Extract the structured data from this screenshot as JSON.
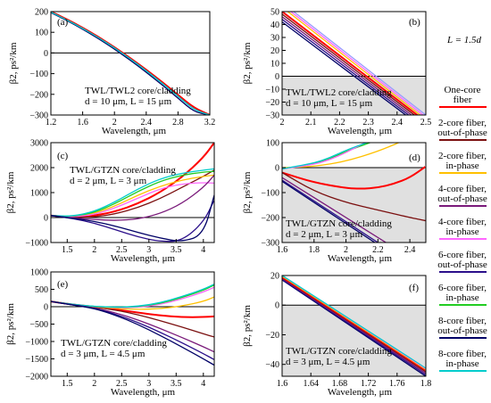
{
  "legend": {
    "note": "L = 1.5d",
    "items": [
      {
        "text": [
          "One-core",
          "fiber"
        ],
        "color": "#ff0000"
      },
      {
        "text": [
          "2-core fiber,",
          "out-of-phase"
        ],
        "color": "#7b1010"
      },
      {
        "text": [
          "2-core fiber,",
          "in-phase"
        ],
        "color": "#ffc000"
      },
      {
        "text": [
          "4-core fiber,",
          "out-of-phase"
        ],
        "color": "#7a1a7a"
      },
      {
        "text": [
          "4-core fiber,",
          "in-phase"
        ],
        "color": "#ff66ff"
      },
      {
        "text": [
          "6-core fiber,",
          "out-of-phase"
        ],
        "color": "#2b0f8a"
      },
      {
        "text": [
          "6-core fiber,",
          "in-phase"
        ],
        "color": "#22cc22"
      },
      {
        "text": [
          "8-core fiber,",
          "out-of-phase"
        ],
        "color": "#000066"
      },
      {
        "text": [
          "8-core fiber,",
          "in-phase"
        ],
        "color": "#00cccc"
      }
    ]
  },
  "chart_data": [
    {
      "panel": "(a)",
      "type": "line",
      "xlabel": "Wavelength, μm",
      "ylabel": "β2, ps²/km",
      "xlim": [
        1.2,
        3.2
      ],
      "ylim": [
        -300,
        200
      ],
      "xticks": [
        1.2,
        1.6,
        2.0,
        2.4,
        2.8,
        3.2
      ],
      "yticks": [
        -300,
        -200,
        -100,
        0,
        100,
        200
      ],
      "annotation": [
        "TWL/TWL2 core/cladding",
        "d = 10 μm, L = 15 μm"
      ],
      "series": [
        {
          "color": "#ff0000",
          "x": [
            1.2,
            1.4,
            1.6,
            1.8,
            2.0,
            2.2,
            2.4,
            2.6,
            2.8,
            3.0,
            3.2
          ],
          "y": [
            200,
            163,
            122,
            77,
            28,
            -25,
            -81,
            -140,
            -202,
            -265,
            -300
          ]
        },
        {
          "color": "#000066",
          "x": [
            1.2,
            1.4,
            1.6,
            1.8,
            2.0,
            2.2,
            2.4,
            2.6,
            2.8,
            3.0,
            3.2
          ],
          "y": [
            195,
            157,
            115,
            69,
            19,
            -35,
            -93,
            -154,
            -218,
            -285,
            -300
          ]
        },
        {
          "color": "#00cccc",
          "x": [
            1.2,
            1.4,
            1.6,
            1.8,
            2.0,
            2.2,
            2.4,
            2.6,
            2.8,
            3.0,
            3.2
          ],
          "y": [
            198,
            160,
            119,
            74,
            25,
            -29,
            -86,
            -146,
            -209,
            -275,
            -300
          ]
        }
      ]
    },
    {
      "panel": "(b)",
      "type": "line",
      "shaded": true,
      "xlabel": "Wavelength, μm",
      "ylabel": "β2, ps²/km",
      "xlim": [
        2.0,
        2.5
      ],
      "ylim": [
        -30,
        50
      ],
      "xticks": [
        2.0,
        2.1,
        2.2,
        2.3,
        2.4,
        2.5
      ],
      "yticks": [
        -30,
        -20,
        -10,
        0,
        10,
        20,
        30,
        40,
        50
      ],
      "annotation": [
        "TWL/TWL2 core/cladding",
        "d = 10 μm, L = 15 μm"
      ],
      "series": [
        {
          "color": "#000066",
          "x": [
            2.0,
            2.43
          ],
          "y": [
            42,
            -30
          ]
        },
        {
          "color": "#2b0f8a",
          "x": [
            2.0,
            2.44
          ],
          "y": [
            44,
            -30
          ]
        },
        {
          "color": "#7a1a7a",
          "x": [
            2.0,
            2.45
          ],
          "y": [
            46,
            -30
          ]
        },
        {
          "color": "#7b1010",
          "x": [
            2.0,
            2.46
          ],
          "y": [
            48,
            -30
          ]
        },
        {
          "color": "#ff0000",
          "x": [
            2.0,
            2.47
          ],
          "y": [
            50,
            -30
          ]
        },
        {
          "color": "#ffc000",
          "x": [
            2.02,
            2.48
          ],
          "y": [
            50,
            -30
          ]
        },
        {
          "color": "#ff66ff",
          "x": [
            2.03,
            2.49
          ],
          "y": [
            50,
            -30
          ]
        },
        {
          "color": "#9999ff",
          "x": [
            2.04,
            2.5
          ],
          "y": [
            50,
            -30
          ]
        }
      ]
    },
    {
      "panel": "(c)",
      "type": "line",
      "xlabel": "Wavelength, μm",
      "ylabel": "β2, ps²/km",
      "xlim": [
        1.2,
        4.2
      ],
      "ylim": [
        -1000,
        3000
      ],
      "xticks": [
        1.5,
        2.0,
        2.5,
        3.0,
        3.5,
        4.0
      ],
      "yticks": [
        -1000,
        0,
        1000,
        2000,
        3000
      ],
      "annotation": [
        "TWL/GTZN core/cladding",
        "d = 2 μm, L = 3 μm"
      ],
      "series": [
        {
          "color": "#ff0000",
          "x": [
            1.2,
            1.6,
            2.0,
            2.4,
            2.8,
            3.2,
            3.6,
            4.0,
            4.2
          ],
          "y": [
            80,
            10,
            70,
            250,
            560,
            1000,
            1600,
            2400,
            3000
          ]
        },
        {
          "color": "#7b1010",
          "x": [
            1.2,
            1.6,
            2.0,
            2.4,
            2.8,
            3.2,
            3.6,
            4.0,
            4.2
          ],
          "y": [
            80,
            0,
            20,
            150,
            400,
            750,
            1200,
            1650,
            1900
          ]
        },
        {
          "color": "#ffc000",
          "x": [
            1.2,
            1.6,
            2.0,
            2.4,
            2.8,
            3.2,
            3.6,
            4.0,
            4.2
          ],
          "y": [
            80,
            30,
            160,
            480,
            900,
            1250,
            1500,
            1650,
            1700
          ]
        },
        {
          "color": "#ff66ff",
          "x": [
            1.2,
            1.6,
            2.0,
            2.4,
            2.8,
            3.2,
            3.6,
            4.0,
            4.2
          ],
          "y": [
            80,
            20,
            120,
            400,
            780,
            1150,
            1350,
            1400,
            1380
          ]
        },
        {
          "color": "#22cc22",
          "x": [
            1.2,
            1.6,
            2.0,
            2.4,
            2.8,
            3.2,
            3.6,
            4.0,
            4.2
          ],
          "y": [
            80,
            40,
            200,
            580,
            1050,
            1450,
            1700,
            1820,
            1850
          ]
        },
        {
          "color": "#00cccc",
          "x": [
            1.2,
            1.6,
            2.0,
            2.4,
            2.8,
            3.2,
            3.6,
            4.0,
            4.2
          ],
          "y": [
            80,
            50,
            240,
            650,
            1150,
            1550,
            1780,
            1900,
            1950
          ]
        },
        {
          "color": "#7a1a7a",
          "x": [
            1.2,
            1.6,
            2.0,
            2.4,
            2.8,
            3.2,
            3.6,
            4.0,
            4.2
          ],
          "y": [
            80,
            -20,
            -80,
            -120,
            -60,
            150,
            550,
            1200,
            1700
          ]
        },
        {
          "color": "#2b0f8a",
          "x": [
            1.2,
            1.6,
            2.0,
            2.4,
            2.8,
            3.2,
            3.6,
            4.0,
            4.2
          ],
          "y": [
            80,
            -40,
            -220,
            -500,
            -780,
            -960,
            -950,
            -200,
            700
          ]
        },
        {
          "color": "#000066",
          "x": [
            1.2,
            1.6,
            2.0,
            2.4,
            2.8,
            3.2,
            3.6,
            4.0,
            4.2
          ],
          "y": [
            80,
            -30,
            -150,
            -350,
            -600,
            -820,
            -980,
            -700,
            900
          ]
        }
      ]
    },
    {
      "panel": "(d)",
      "type": "line",
      "shaded": true,
      "xlabel": "Wavelength, μm",
      "ylabel": "β2, ps²/km",
      "xlim": [
        1.6,
        2.5
      ],
      "ylim": [
        -300,
        100
      ],
      "xticks": [
        1.6,
        1.8,
        2.0,
        2.2,
        2.4
      ],
      "yticks": [
        -300,
        -200,
        -100,
        0,
        100
      ],
      "annotation": [
        "TWL/GTZN core/cladding",
        "d = 2 μm, L = 3 μm"
      ],
      "series": [
        {
          "color": "#ff0000",
          "x": [
            1.6,
            1.8,
            2.0,
            2.1,
            2.2,
            2.3,
            2.4,
            2.5
          ],
          "y": [
            -20,
            -60,
            -82,
            -85,
            -80,
            -65,
            -40,
            5
          ]
        },
        {
          "color": "#7b1010",
          "x": [
            1.6,
            1.8,
            2.0,
            2.2,
            2.4,
            2.5
          ],
          "y": [
            -20,
            -95,
            -140,
            -170,
            -200,
            -213
          ]
        },
        {
          "color": "#ffc000",
          "x": [
            1.6,
            1.8,
            2.0,
            2.2,
            2.33
          ],
          "y": [
            0,
            4,
            25,
            65,
            100
          ]
        },
        {
          "color": "#22cc22",
          "x": [
            1.6,
            1.8,
            1.9,
            2.0,
            2.15
          ],
          "y": [
            -5,
            15,
            35,
            65,
            100
          ]
        },
        {
          "color": "#ff66ff",
          "x": [
            1.6,
            1.8,
            1.9,
            2.0,
            2.12
          ],
          "y": [
            -5,
            12,
            32,
            60,
            100
          ]
        },
        {
          "color": "#00cccc",
          "x": [
            1.6,
            1.8,
            1.9,
            2.0,
            2.13
          ],
          "y": [
            -5,
            18,
            40,
            70,
            100
          ]
        },
        {
          "color": "#7a1a7a",
          "x": [
            1.6,
            2.25
          ],
          "y": [
            -40,
            -300
          ]
        },
        {
          "color": "#2b0f8a",
          "x": [
            1.6,
            2.2
          ],
          "y": [
            -50,
            -300
          ]
        },
        {
          "color": "#000066",
          "x": [
            1.6,
            2.18
          ],
          "y": [
            -55,
            -300
          ]
        }
      ]
    },
    {
      "panel": "(e)",
      "type": "line",
      "xlabel": "Wavelength, μm",
      "ylabel": "β2, ps²/km",
      "xlim": [
        1.2,
        4.2
      ],
      "ylim": [
        -2000,
        1000
      ],
      "xticks": [
        1.5,
        2.0,
        2.5,
        3.0,
        3.5,
        4.0
      ],
      "yticks": [
        -2000,
        -1500,
        -1000,
        -500,
        0,
        500,
        1000
      ],
      "annotation": [
        "TWL/GTZN core/cladding",
        "d = 3 μm, L = 4.5 μm"
      ],
      "series": [
        {
          "color": "#ff0000",
          "x": [
            1.2,
            1.6,
            2.0,
            2.4,
            2.8,
            3.2,
            3.6,
            4.0,
            4.2
          ],
          "y": [
            150,
            60,
            0,
            -80,
            -170,
            -250,
            -300,
            -300,
            -280
          ]
        },
        {
          "color": "#7b1010",
          "x": [
            1.2,
            1.6,
            2.0,
            2.4,
            2.8,
            3.2,
            3.6,
            4.0,
            4.2
          ],
          "y": [
            150,
            60,
            -10,
            -100,
            -230,
            -400,
            -580,
            -780,
            -870
          ]
        },
        {
          "color": "#ffc000",
          "x": [
            1.2,
            1.6,
            2.0,
            2.4,
            2.8,
            3.2,
            3.6,
            4.0,
            4.2
          ],
          "y": [
            150,
            65,
            0,
            -50,
            -80,
            -60,
            20,
            150,
            280
          ]
        },
        {
          "color": "#ff66ff",
          "x": [
            1.2,
            1.6,
            2.0,
            2.4,
            2.8,
            3.2,
            3.6,
            4.0,
            4.2
          ],
          "y": [
            150,
            65,
            5,
            -30,
            -20,
            60,
            220,
            420,
            560
          ]
        },
        {
          "color": "#22cc22",
          "x": [
            1.2,
            1.6,
            2.0,
            2.4,
            2.8,
            3.2,
            3.6,
            4.0,
            4.2
          ],
          "y": [
            150,
            66,
            8,
            -20,
            0,
            90,
            260,
            470,
            620
          ]
        },
        {
          "color": "#00cccc",
          "x": [
            1.2,
            1.6,
            2.0,
            2.4,
            2.8,
            3.2,
            3.6,
            4.0,
            4.2
          ],
          "y": [
            150,
            67,
            10,
            -15,
            10,
            110,
            290,
            500,
            650
          ]
        },
        {
          "color": "#7a1a7a",
          "x": [
            1.2,
            1.6,
            2.0,
            2.4,
            2.8,
            3.2,
            3.6,
            4.0,
            4.2
          ],
          "y": [
            150,
            55,
            -30,
            -180,
            -380,
            -620,
            -880,
            -1150,
            -1300
          ]
        },
        {
          "color": "#2b0f8a",
          "x": [
            1.2,
            1.6,
            2.0,
            2.4,
            2.8,
            3.2,
            3.6,
            4.0,
            4.2
          ],
          "y": [
            150,
            52,
            -40,
            -220,
            -450,
            -730,
            -1030,
            -1350,
            -1520
          ]
        },
        {
          "color": "#000066",
          "x": [
            1.2,
            1.6,
            2.0,
            2.4,
            2.8,
            3.2,
            3.6,
            4.0,
            4.2
          ],
          "y": [
            150,
            50,
            -50,
            -250,
            -510,
            -820,
            -1150,
            -1500,
            -1680
          ]
        }
      ]
    },
    {
      "panel": "(f)",
      "type": "line",
      "shaded": true,
      "xlabel": "Wavelength, μm",
      "ylabel": "β2, ps²/km",
      "xlim": [
        1.6,
        1.8
      ],
      "ylim": [
        -48,
        20
      ],
      "xticks": [
        1.6,
        1.64,
        1.68,
        1.72,
        1.76,
        1.8
      ],
      "yticks": [
        -40,
        -20,
        0,
        20
      ],
      "annotation": [
        "TWL/GTZN core/cladding",
        "d = 3 μm, L = 4.5 μm"
      ],
      "series": [
        {
          "color": "#000066",
          "x": [
            1.6,
            1.8
          ],
          "y": [
            17,
            -48
          ]
        },
        {
          "color": "#2b0f8a",
          "x": [
            1.6,
            1.8
          ],
          "y": [
            17.5,
            -47
          ]
        },
        {
          "color": "#7a1a7a",
          "x": [
            1.6,
            1.8
          ],
          "y": [
            18,
            -46
          ]
        },
        {
          "color": "#7b1010",
          "x": [
            1.6,
            1.8
          ],
          "y": [
            18.5,
            -45
          ]
        },
        {
          "color": "#ff0000",
          "x": [
            1.6,
            1.8
          ],
          "y": [
            19,
            -44
          ]
        },
        {
          "color": "#ffc000",
          "x": [
            1.6,
            1.8
          ],
          "y": [
            19.5,
            -43.5
          ]
        },
        {
          "color": "#ff66ff",
          "x": [
            1.6,
            1.8
          ],
          "y": [
            20,
            -43
          ]
        },
        {
          "color": "#00cccc",
          "x": [
            1.6,
            1.8
          ],
          "y": [
            20,
            -42.5
          ]
        }
      ]
    }
  ]
}
